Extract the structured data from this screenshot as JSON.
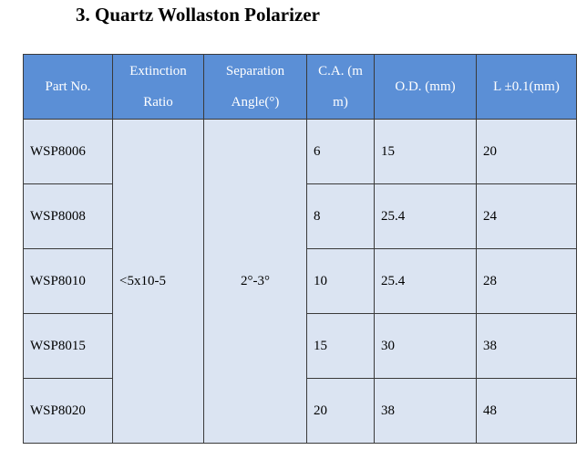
{
  "title": "3. Quartz Wollaston Polarizer",
  "headers": {
    "part_no": "Part No.",
    "extinction_line1": "Extinction",
    "extinction_line2": "Ratio",
    "separation_line1": "Separation",
    "separation_line2": "Angle(°)",
    "ca_line1": "C.A. (m",
    "ca_line2": "m)",
    "od": "O.D. (mm)",
    "length": "L ±0.1(mm)"
  },
  "shared": {
    "extinction_ratio": "<5x10-5",
    "separation_angle": "2°-3°"
  },
  "rows": [
    {
      "part_no": "WSP8006",
      "ca": "6",
      "od": "15",
      "length": "20"
    },
    {
      "part_no": "WSP8008",
      "ca": "8",
      "od": "25.4",
      "length": "24"
    },
    {
      "part_no": "WSP8010",
      "ca": "10",
      "od": "25.4",
      "length": "28"
    },
    {
      "part_no": "WSP8015",
      "ca": "15",
      "od": "30",
      "length": "38"
    },
    {
      "part_no": "WSP8020",
      "ca": "20",
      "od": "38",
      "length": "48"
    }
  ],
  "colors": {
    "header_bg": "#5b8fd6",
    "body_bg": "#dbe4f2"
  }
}
